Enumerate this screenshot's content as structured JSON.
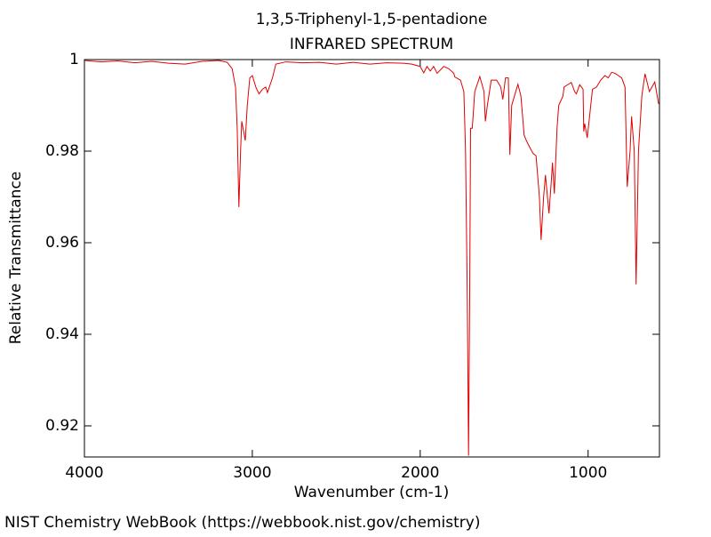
{
  "chart_data": {
    "type": "line",
    "title": "1,3,5-Triphenyl-1,5-pentadione",
    "subtitle": "INFRARED SPECTRUM",
    "x_label": "Wavenumber (cm-1)",
    "y_label": "Relative Transmittance",
    "source": "NIST Chemistry WebBook (https://webbook.nist.gov/chemistry)",
    "color": "#e00000",
    "xlim": [
      4000,
      575
    ],
    "ylim": [
      0.9132,
      1
    ],
    "xticks": [
      4000,
      3000,
      2000,
      1000
    ],
    "yticks": [
      1,
      0.98,
      0.96,
      0.94,
      0.92
    ],
    "x": [
      4000,
      3900,
      3800,
      3700,
      3600,
      3500,
      3400,
      3300,
      3200,
      3150,
      3120,
      3100,
      3090,
      3080,
      3070,
      3063,
      3050,
      3042,
      3030,
      3015,
      3000,
      2979,
      2960,
      2940,
      2920,
      2910,
      2880,
      2860,
      2800,
      2700,
      2600,
      2500,
      2400,
      2300,
      2200,
      2100,
      2050,
      2000,
      1979,
      1960,
      1940,
      1920,
      1899,
      1860,
      1830,
      1800,
      1794,
      1760,
      1740,
      1730,
      1720,
      1712,
      1705,
      1700,
      1690,
      1675,
      1645,
      1620,
      1612,
      1600,
      1577,
      1560,
      1545,
      1520,
      1508,
      1492,
      1475,
      1466,
      1455,
      1418,
      1400,
      1381,
      1370,
      1350,
      1328,
      1310,
      1290,
      1280,
      1265,
      1254,
      1233,
      1220,
      1212,
      1201,
      1185,
      1175,
      1150,
      1143,
      1100,
      1080,
      1070,
      1050,
      1030,
      1026,
      1020,
      1005,
      990,
      974,
      950,
      925,
      900,
      880,
      860,
      840,
      820,
      800,
      780,
      767,
      750,
      741,
      725,
      714,
      700,
      680,
      661,
      635,
      603,
      580
    ],
    "values": [
      0.9998,
      0.9995,
      0.9997,
      0.9993,
      0.9996,
      0.9992,
      0.999,
      0.9996,
      0.9998,
      0.9994,
      0.998,
      0.994,
      0.985,
      0.9678,
      0.98,
      0.9865,
      0.984,
      0.9823,
      0.99,
      0.996,
      0.9965,
      0.994,
      0.9925,
      0.9935,
      0.994,
      0.9928,
      0.996,
      0.999,
      0.9995,
      0.9993,
      0.9994,
      0.999,
      0.9994,
      0.999,
      0.9993,
      0.9992,
      0.999,
      0.9985,
      0.9971,
      0.9985,
      0.9975,
      0.9985,
      0.997,
      0.9985,
      0.998,
      0.997,
      0.9962,
      0.9955,
      0.993,
      0.98,
      0.95,
      0.9135,
      0.95,
      0.985,
      0.985,
      0.993,
      0.9963,
      0.993,
      0.9865,
      0.99,
      0.9955,
      0.9955,
      0.9955,
      0.994,
      0.9913,
      0.996,
      0.996,
      0.9792,
      0.99,
      0.9946,
      0.992,
      0.9835,
      0.9825,
      0.981,
      0.9795,
      0.979,
      0.97,
      0.9606,
      0.97,
      0.9748,
      0.9664,
      0.973,
      0.9775,
      0.9707,
      0.985,
      0.99,
      0.992,
      0.994,
      0.995,
      0.993,
      0.9925,
      0.9945,
      0.9935,
      0.9843,
      0.986,
      0.9829,
      0.988,
      0.9935,
      0.994,
      0.9955,
      0.9965,
      0.996,
      0.9972,
      0.997,
      0.9965,
      0.996,
      0.994,
      0.9722,
      0.98,
      0.9876,
      0.98,
      0.9509,
      0.98,
      0.992,
      0.9969,
      0.993,
      0.9951,
      0.9903
    ]
  }
}
